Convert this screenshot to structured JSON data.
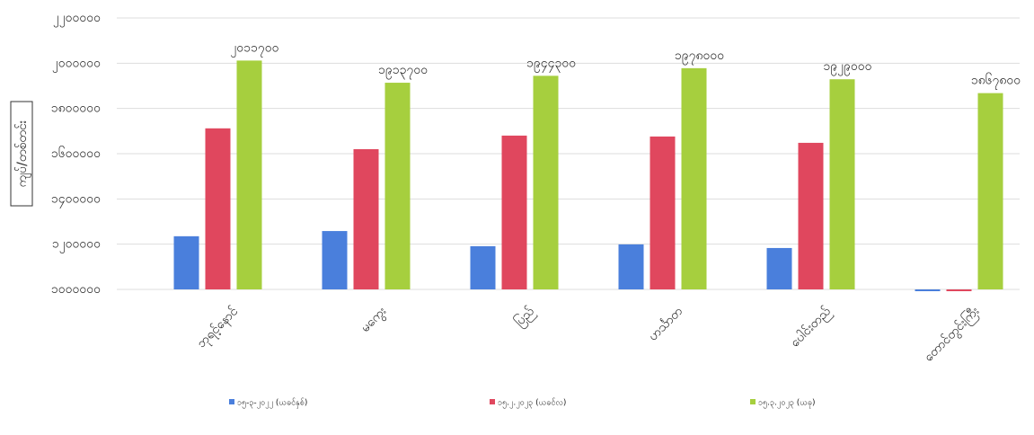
{
  "chart_data": {
    "type": "bar",
    "y_label": "ကျပ်/တစ်တင်း",
    "categories": [
      "ဘုရင့်နောင်",
      "မကွေး",
      "ပြည်",
      "ဟင်္သာတ",
      "ပေါင်းတည်",
      "တောင်တွင်းကြီး"
    ],
    "series": [
      {
        "name": "၁၅-၃-၂၀၂၂ (ယခင်နှစ်)",
        "color": "#4a7fdc",
        "values": [
          1235000,
          1258000,
          1191000,
          1199000,
          1183000,
          1000000
        ]
      },
      {
        "name": "၁၅.၂.၂၀၂၃ (ယခင်လ)",
        "color": "#e0475e",
        "values": [
          1712000,
          1620000,
          1680000,
          1676000,
          1648000,
          1000000
        ]
      },
      {
        "name": "၁၅.၃.၂၀၂၃ (ယခု)",
        "color": "#a6cf3e",
        "values": [
          2011700,
          1913700,
          1944300,
          1978000,
          1929000,
          1867800
        ],
        "value_labels": [
          "၂၀၁၁၇၀၀",
          "၁၉၁၃၇၀၀",
          "၁၉၄၄၃၀၀",
          "၁၉၇၈၀၀၀",
          "၁၉၂၉၀၀၀",
          "၁၈၆၇၈၀၀"
        ]
      }
    ],
    "ylim": [
      1000000,
      2200000
    ],
    "yticks": [
      {
        "value": 1000000,
        "label": "၁၀၀၀၀၀၀"
      },
      {
        "value": 1200000,
        "label": "၁၂၀၀၀၀၀"
      },
      {
        "value": 1400000,
        "label": "၁၄၀၀၀၀၀"
      },
      {
        "value": 1600000,
        "label": "၁၆၀၀၀၀၀"
      },
      {
        "value": 1800000,
        "label": "၁၈၀၀၀၀၀"
      },
      {
        "value": 2000000,
        "label": "၂၀၀၀၀၀၀"
      },
      {
        "value": 2200000,
        "label": "၂၂၀၀၀၀၀"
      }
    ],
    "grid": true
  }
}
